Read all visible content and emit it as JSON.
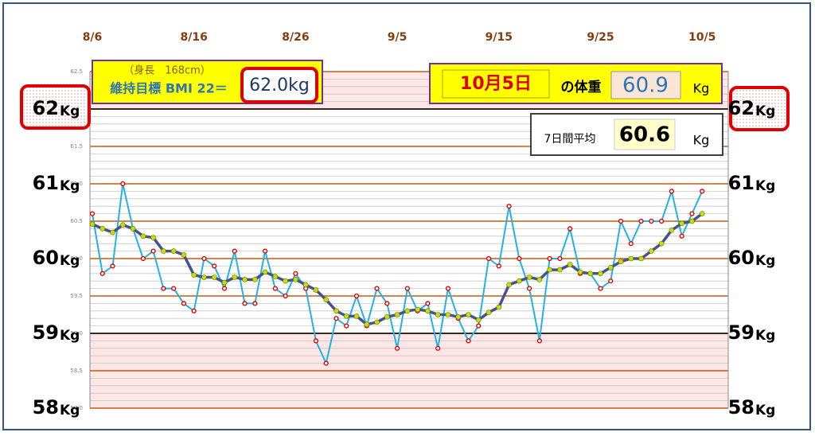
{
  "chart_data": {
    "type": "line",
    "categories": [
      "8/6",
      null,
      null,
      null,
      null,
      null,
      null,
      null,
      null,
      null,
      "8/16",
      null,
      null,
      null,
      null,
      null,
      null,
      null,
      null,
      null,
      "8/26",
      null,
      null,
      null,
      null,
      null,
      null,
      null,
      null,
      null,
      "9/5",
      null,
      null,
      null,
      null,
      null,
      null,
      null,
      null,
      null,
      "9/15",
      null,
      null,
      null,
      null,
      null,
      null,
      null,
      null,
      null,
      "9/25",
      null,
      null,
      null,
      null,
      null,
      null,
      null,
      null,
      null,
      "10/5"
    ],
    "series": [
      {
        "color": "#22b2e8",
        "marker_color": "#e00000",
        "values": [
          60.6,
          59.8,
          59.9,
          61.0,
          60.4,
          60.0,
          60.1,
          59.6,
          59.6,
          59.4,
          59.3,
          60.0,
          59.9,
          59.6,
          60.1,
          59.4,
          59.4,
          60.1,
          59.6,
          59.5,
          59.8,
          59.6,
          58.9,
          58.6,
          59.2,
          59.1,
          59.5,
          59.1,
          59.6,
          59.4,
          58.8,
          59.6,
          59.3,
          59.4,
          58.8,
          59.6,
          59.2,
          58.9,
          59.1,
          60.0,
          59.9,
          60.7,
          60.0,
          59.6,
          58.9,
          60.0,
          60.0,
          60.4,
          59.8,
          59.8,
          59.6,
          59.7,
          60.5,
          60.2,
          60.5,
          60.5,
          60.5,
          60.9,
          60.3,
          60.6,
          60.9
        ]
      },
      {
        "color": "#44548f",
        "marker_color": "#c8e000",
        "values": [
          60.46,
          60.4,
          60.35,
          60.45,
          60.4,
          60.3,
          60.28,
          60.1,
          60.1,
          60.05,
          59.78,
          59.75,
          59.75,
          59.68,
          59.75,
          59.72,
          59.72,
          59.82,
          59.76,
          59.7,
          59.72,
          59.65,
          59.58,
          59.45,
          59.3,
          59.23,
          59.23,
          59.12,
          59.15,
          59.22,
          59.25,
          59.3,
          59.32,
          59.3,
          59.25,
          59.25,
          59.22,
          59.25,
          59.18,
          59.28,
          59.35,
          59.65,
          59.7,
          59.75,
          59.72,
          59.85,
          59.85,
          59.92,
          59.82,
          59.8,
          59.8,
          59.88,
          59.96,
          60.0,
          60.0,
          60.1,
          60.2,
          60.38,
          60.47,
          60.5,
          60.6
        ]
      }
    ],
    "ylim": [
      58,
      62.5
    ],
    "yticks": [
      {
        "value": 58,
        "label": "58.0"
      },
      58.5,
      {
        "value": 59,
        "label": "59.0"
      },
      59.5,
      {
        "value": 60,
        "label": "60.0"
      },
      60.5,
      {
        "value": 61,
        "label": "61.0"
      },
      61.5,
      {
        "value": 62,
        "label": "62.0"
      },
      62.5
    ],
    "grid": true,
    "grid_color": "#c55a11",
    "minor_grid_step": 0.1,
    "bands": [
      {
        "from": 62,
        "to": 62.5,
        "color": "#fde6e6"
      },
      {
        "from": 58,
        "to": 59,
        "color": "#fde6e6"
      }
    ],
    "limit_lines": [
      59,
      62
    ],
    "side_labels": [
      62,
      61,
      60,
      59,
      58
    ],
    "side_unit": "Kg"
  },
  "annotations": {
    "height": "（身長　168cm）",
    "goal": "維持目標 BMI 22＝",
    "goal_weight": "62.0kg",
    "date": "10月5日",
    "date_suffix": "の体重",
    "weight": "60.9",
    "weight_unit": "Kg",
    "avg_label": "7日間平均",
    "avg": "60.6",
    "avg_unit": "Kg"
  }
}
